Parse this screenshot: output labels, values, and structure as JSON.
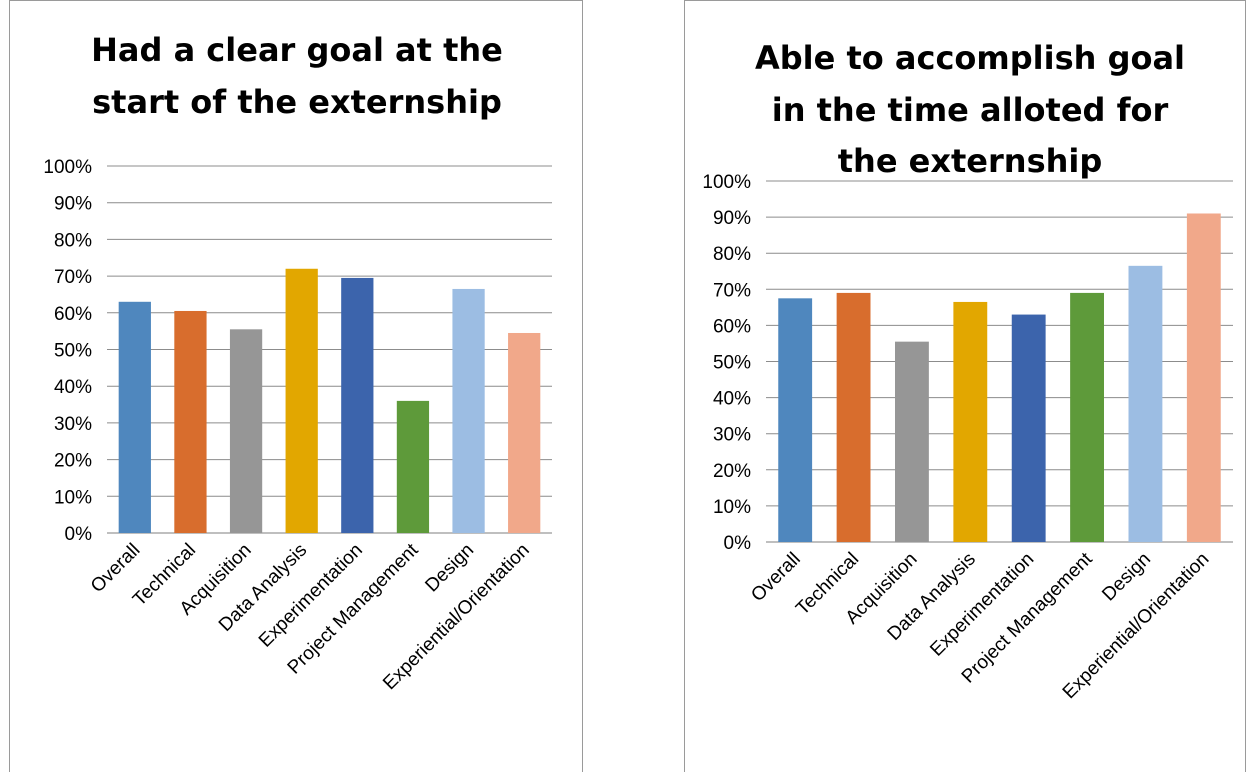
{
  "chart_data": [
    {
      "type": "bar",
      "title": "Had a clear goal at the start of the externship",
      "title_lines": [
        "Had a clear goal at the",
        "start of the externship"
      ],
      "categories": [
        "Overall",
        "Technical",
        "Acquisition",
        "Data Analysis",
        "Experimentation",
        "Project Management",
        "Design",
        "Experiential/Orientation"
      ],
      "values": [
        0.63,
        0.605,
        0.555,
        0.72,
        0.695,
        0.36,
        0.665,
        0.545
      ],
      "colors": [
        "#4f87be",
        "#d86d2d",
        "#969696",
        "#e2a700",
        "#3c64ac",
        "#5e9a3a",
        "#9cbde3",
        "#f1a88a"
      ],
      "ylim": [
        0,
        1
      ],
      "yticks": [
        "0%",
        "10%",
        "20%",
        "30%",
        "40%",
        "50%",
        "60%",
        "70%",
        "80%",
        "90%",
        "100%"
      ],
      "grid": true,
      "legend": "none"
    },
    {
      "type": "bar",
      "title": "Able to accomplish goal in the time alloted for the externship",
      "title_lines": [
        "Able to accomplish goal",
        "in the time alloted for",
        "the externship"
      ],
      "categories": [
        "Overall",
        "Technical",
        "Acquisition",
        "Data Analysis",
        "Experimentation",
        "Project Management",
        "Design",
        "Experiential/Orientation"
      ],
      "values": [
        0.675,
        0.69,
        0.555,
        0.665,
        0.63,
        0.69,
        0.765,
        0.91
      ],
      "colors": [
        "#4f87be",
        "#d86d2d",
        "#969696",
        "#e2a700",
        "#3c64ac",
        "#5e9a3a",
        "#9cbde3",
        "#f1a88a"
      ],
      "ylim": [
        0,
        1
      ],
      "yticks": [
        "0%",
        "10%",
        "20%",
        "30%",
        "40%",
        "50%",
        "60%",
        "70%",
        "80%",
        "90%",
        "100%"
      ],
      "grid": true,
      "legend": "none"
    }
  ]
}
